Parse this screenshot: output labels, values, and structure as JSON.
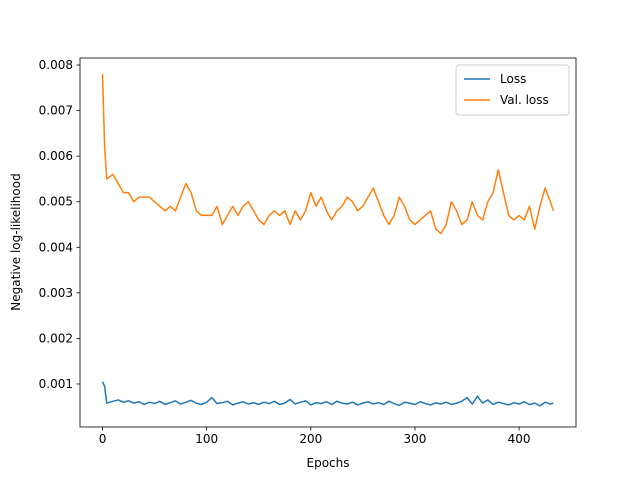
{
  "chart_data": {
    "type": "line",
    "xlabel": "Epochs",
    "ylabel": "Negative log-likelihood",
    "x": [
      0,
      2,
      4,
      10,
      15,
      20,
      25,
      30,
      35,
      40,
      45,
      50,
      55,
      60,
      65,
      70,
      75,
      80,
      85,
      90,
      95,
      100,
      105,
      110,
      115,
      120,
      125,
      130,
      135,
      140,
      145,
      150,
      155,
      160,
      165,
      170,
      175,
      180,
      185,
      190,
      195,
      200,
      205,
      210,
      215,
      220,
      225,
      230,
      235,
      240,
      245,
      250,
      255,
      260,
      265,
      270,
      275,
      280,
      285,
      290,
      295,
      300,
      305,
      310,
      315,
      320,
      325,
      330,
      335,
      340,
      345,
      350,
      355,
      360,
      365,
      370,
      375,
      380,
      385,
      390,
      395,
      400,
      405,
      410,
      415,
      420,
      425,
      430,
      433
    ],
    "series": [
      {
        "name": "Loss",
        "color": "#1f77b4",
        "values": [
          0.00105,
          0.00095,
          0.00058,
          0.00062,
          0.00065,
          0.0006,
          0.00063,
          0.00058,
          0.00061,
          0.00055,
          0.0006,
          0.00057,
          0.00062,
          0.00055,
          0.00059,
          0.00063,
          0.00056,
          0.0006,
          0.00064,
          0.00058,
          0.00055,
          0.0006,
          0.0007,
          0.00057,
          0.00059,
          0.00062,
          0.00054,
          0.00058,
          0.00061,
          0.00056,
          0.00059,
          0.00055,
          0.0006,
          0.00057,
          0.00062,
          0.00055,
          0.00058,
          0.00066,
          0.00056,
          0.0006,
          0.00063,
          0.00054,
          0.00059,
          0.00057,
          0.00061,
          0.00055,
          0.00062,
          0.00058,
          0.00056,
          0.0006,
          0.00054,
          0.00058,
          0.00061,
          0.00056,
          0.00059,
          0.00055,
          0.00062,
          0.00057,
          0.00053,
          0.0006,
          0.00058,
          0.00055,
          0.00061,
          0.00057,
          0.00054,
          0.00059,
          0.00056,
          0.0006,
          0.00055,
          0.00058,
          0.00062,
          0.0007,
          0.00056,
          0.00073,
          0.00058,
          0.00065,
          0.00055,
          0.0006,
          0.00057,
          0.00054,
          0.00059,
          0.00056,
          0.00061,
          0.00055,
          0.00058,
          0.00052,
          0.0006,
          0.00056,
          0.00058
        ]
      },
      {
        "name": "Val. loss",
        "color": "#ff7f0e",
        "values": [
          0.0078,
          0.0062,
          0.0055,
          0.0056,
          0.0054,
          0.0052,
          0.0052,
          0.005,
          0.0051,
          0.0051,
          0.0051,
          0.005,
          0.0049,
          0.0048,
          0.0049,
          0.0048,
          0.0051,
          0.0054,
          0.0052,
          0.0048,
          0.0047,
          0.0047,
          0.0047,
          0.0049,
          0.0045,
          0.0047,
          0.0049,
          0.0047,
          0.0049,
          0.005,
          0.0048,
          0.0046,
          0.0045,
          0.0047,
          0.0048,
          0.0047,
          0.0048,
          0.0045,
          0.0048,
          0.0046,
          0.0048,
          0.0052,
          0.0049,
          0.0051,
          0.0048,
          0.0046,
          0.0048,
          0.0049,
          0.0051,
          0.005,
          0.0048,
          0.0049,
          0.0051,
          0.0053,
          0.005,
          0.0047,
          0.0045,
          0.0047,
          0.0051,
          0.0049,
          0.0046,
          0.0045,
          0.0046,
          0.0047,
          0.0048,
          0.0044,
          0.0043,
          0.0045,
          0.005,
          0.0048,
          0.0045,
          0.0046,
          0.005,
          0.0047,
          0.0046,
          0.005,
          0.0052,
          0.0057,
          0.0052,
          0.0047,
          0.0046,
          0.0047,
          0.0046,
          0.0049,
          0.0044,
          0.0049,
          0.0053,
          0.005,
          0.0048
        ]
      }
    ],
    "xlim": [
      -21.65,
      454.65
    ],
    "xticks": [
      0,
      100,
      200,
      300,
      400
    ],
    "ylim": [
      5.6e-05,
      0.008154
    ],
    "yticks": [
      0.001,
      0.002,
      0.003,
      0.004,
      0.005,
      0.006,
      0.007,
      0.008
    ],
    "legend": "upper right"
  }
}
